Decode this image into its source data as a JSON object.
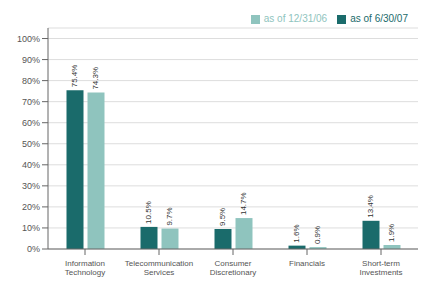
{
  "chart_data": {
    "type": "bar",
    "categories": [
      "Information\nTechnology",
      "Telecommunication\nServices",
      "Consumer\nDiscretionary",
      "Financials",
      "Short-term\nInvestments"
    ],
    "series": [
      {
        "name": "as of 6/30/07",
        "color": "#1a6b6b",
        "values": [
          75.4,
          10.5,
          9.5,
          1.6,
          13.4
        ],
        "value_labels": [
          "75.4%",
          "10.5%",
          "9.5%",
          "1.6%",
          "13.4%"
        ]
      },
      {
        "name": "as of 12/31/06",
        "color": "#8fc4be",
        "values": [
          74.3,
          9.7,
          14.7,
          0.9,
          1.9
        ],
        "value_labels": [
          "74.3%",
          "9.7%",
          "14.7%",
          "0.9%",
          "1.9%"
        ]
      }
    ],
    "ylim": [
      0,
      105
    ],
    "yticks": [
      {
        "value": 0,
        "label": "0%"
      },
      {
        "value": 10,
        "label": "10%"
      },
      {
        "value": 20,
        "label": "20%"
      },
      {
        "value": 30,
        "label": "30%"
      },
      {
        "value": 40,
        "label": "40%"
      },
      {
        "value": 50,
        "label": "50%"
      },
      {
        "value": 60,
        "label": "60%"
      },
      {
        "value": 70,
        "label": "70%"
      },
      {
        "value": 80,
        "label": "80%"
      },
      {
        "value": 90,
        "label": "90%"
      },
      {
        "value": 100,
        "label": "100%"
      }
    ],
    "grid": true,
    "legend": "upper right",
    "data_labels": true
  }
}
